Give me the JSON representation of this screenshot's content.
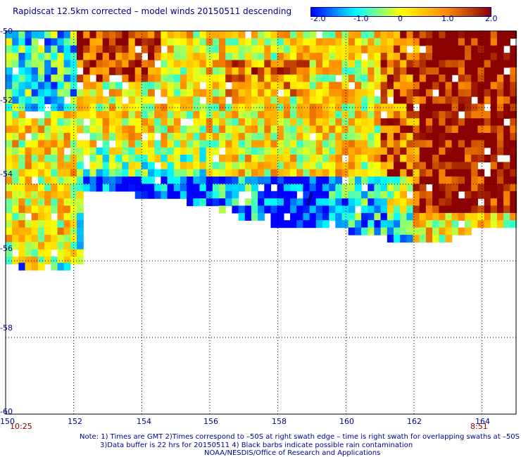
{
  "title": "Rapidscat 12.5km corrected – model winds 20150511 descending",
  "colorbar": {
    "colors": [
      "#0000ff",
      "#00ffff",
      "#ffff00",
      "#ff8c00",
      "#8b0000"
    ],
    "ticks": [
      "-2.0",
      "-1.0",
      "0",
      "1.0",
      "2.0"
    ]
  },
  "axes": {
    "x_ticks": [
      "150",
      "152",
      "154",
      "156",
      "158",
      "160",
      "162",
      "164"
    ],
    "y_ticks": [
      "-50",
      "-52",
      "-54",
      "-56",
      "-58",
      "-60"
    ],
    "x_range": [
      150,
      165
    ],
    "y_range": [
      -60,
      -50
    ]
  },
  "times": {
    "start": "10:25",
    "end": "8:51"
  },
  "notes": [
    "Note: 1) Times are GMT 2)Times correspond to –50S at right swath edge – time is right swath for overlapping swaths at –50S",
    "3)Data buffer is 22 hrs for 20150511 4) Black barbs indicate possible rain contamination",
    "NOAA/NESDIS/Office of Research and Applications"
  ]
}
